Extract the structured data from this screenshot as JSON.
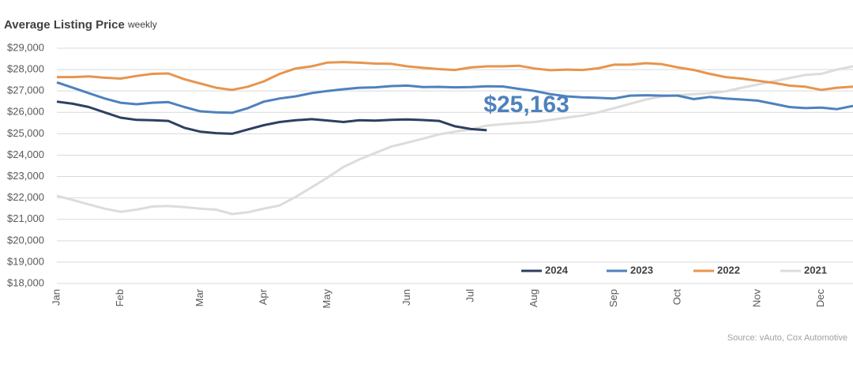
{
  "chart_data": {
    "type": "line",
    "title": "Average Listing Price",
    "subtitle": "weekly",
    "source": "Source: vAuto, Cox Automotive",
    "annotation": "$25,163",
    "categories": [
      "Jan",
      null,
      null,
      null,
      "Feb",
      null,
      null,
      null,
      null,
      "Mar",
      null,
      null,
      null,
      "Apr",
      null,
      null,
      null,
      "May",
      null,
      null,
      null,
      null,
      "Jun",
      null,
      null,
      null,
      "Jul",
      null,
      null,
      null,
      "Aug",
      null,
      null,
      null,
      null,
      "Sep",
      null,
      null,
      null,
      "Oct",
      null,
      null,
      null,
      null,
      "Nov",
      null,
      null,
      null,
      "Dec",
      null,
      null
    ],
    "series": [
      {
        "name": "2024",
        "color": "#2e3f63",
        "values": [
          26500,
          26400,
          26250,
          26000,
          25750,
          25650,
          25630,
          25600,
          25280,
          25100,
          25030,
          25000,
          25200,
          25400,
          25550,
          25630,
          25680,
          25620,
          25550,
          25630,
          25610,
          25650,
          25670,
          25640,
          25600,
          25350,
          25220,
          25163,
          null,
          null,
          null,
          null,
          null,
          null,
          null,
          null,
          null,
          null,
          null,
          null,
          null,
          null,
          null,
          null,
          null,
          null,
          null,
          null,
          null,
          null,
          null
        ]
      },
      {
        "name": "2023",
        "color": "#4e81bd",
        "values": [
          27400,
          27150,
          26900,
          26650,
          26450,
          26380,
          26450,
          26480,
          26250,
          26050,
          26000,
          25980,
          26200,
          26500,
          26650,
          26750,
          26900,
          27000,
          27080,
          27150,
          27170,
          27230,
          27250,
          27180,
          27190,
          27170,
          27180,
          27220,
          27210,
          27100,
          27000,
          26850,
          26750,
          26700,
          26680,
          26650,
          26780,
          26800,
          26780,
          26780,
          26620,
          26720,
          26650,
          26600,
          26550,
          26400,
          26250,
          26200,
          26220,
          26150,
          26300
        ]
      },
      {
        "name": "2022",
        "color": "#e8944d",
        "values": [
          27650,
          27650,
          27680,
          27620,
          27580,
          27700,
          27800,
          27820,
          27550,
          27350,
          27150,
          27050,
          27200,
          27450,
          27800,
          28050,
          28150,
          28330,
          28350,
          28320,
          28280,
          28270,
          28150,
          28080,
          28020,
          27980,
          28100,
          28150,
          28150,
          28180,
          28050,
          27970,
          28000,
          27980,
          28060,
          28230,
          28230,
          28300,
          28250,
          28100,
          27980,
          27800,
          27650,
          27580,
          27480,
          27380,
          27250,
          27200,
          27050,
          27150,
          27200
        ]
      },
      {
        "name": "2021",
        "color": "#dcdcdc",
        "values": [
          22100,
          21900,
          21700,
          21500,
          21350,
          21450,
          21600,
          21620,
          21570,
          21500,
          21450,
          21250,
          21330,
          21500,
          21650,
          22050,
          22500,
          22950,
          23450,
          23800,
          24100,
          24400,
          24580,
          24770,
          24970,
          25100,
          25200,
          25380,
          25450,
          25500,
          25550,
          25650,
          25750,
          25850,
          26000,
          26200,
          26400,
          26600,
          26750,
          26800,
          26850,
          26900,
          26980,
          27150,
          27300,
          27450,
          27600,
          27750,
          27800,
          28000,
          28150
        ]
      }
    ],
    "ylim": [
      18000,
      29000
    ],
    "yticks": [
      {
        "value": 18000,
        "label": "$18,000"
      },
      {
        "value": 19000,
        "label": "$19,000"
      },
      {
        "value": 20000,
        "label": "$20,000"
      },
      {
        "value": 21000,
        "label": "$21,000"
      },
      {
        "value": 22000,
        "label": "$22,000"
      },
      {
        "value": 23000,
        "label": "$23,000"
      },
      {
        "value": 24000,
        "label": "$24,000"
      },
      {
        "value": 25000,
        "label": "$25,000"
      },
      {
        "value": 26000,
        "label": "$26,000"
      },
      {
        "value": 27000,
        "label": "$27,000"
      },
      {
        "value": 28000,
        "label": "$28,000"
      },
      {
        "value": 29000,
        "label": "$29,000"
      }
    ],
    "grid": true,
    "legend": "bottom-right"
  }
}
